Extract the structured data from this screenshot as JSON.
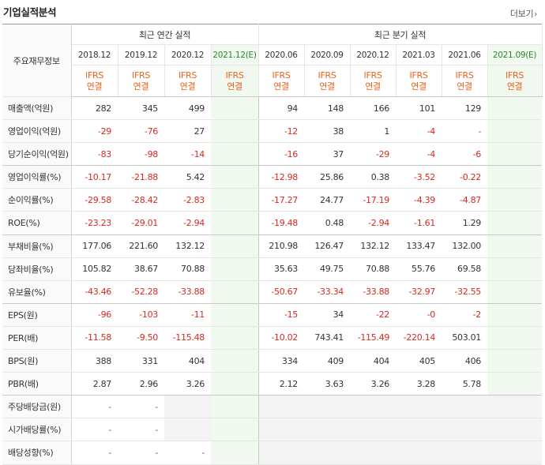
{
  "header": {
    "title": "기업실적분석",
    "more_label": "더보기",
    "more_arrow": "›"
  },
  "table": {
    "corner_label": "주요재무정보",
    "groups": {
      "annual": "최근 연간 실적",
      "quarterly": "최근 분기 실적"
    },
    "annual_periods": [
      "2018.12",
      "2019.12",
      "2020.12",
      "2021.12(E)"
    ],
    "quarter_periods": [
      "2020.06",
      "2020.09",
      "2020.12",
      "2021.03",
      "2021.06",
      "2021.09(E)"
    ],
    "ifrs_line1": "IFRS",
    "ifrs_line2": "연결",
    "rows": [
      {
        "label": "매출액(억원)",
        "annual": [
          "282",
          "345",
          "499",
          ""
        ],
        "quarter": [
          "94",
          "148",
          "166",
          "101",
          "129",
          ""
        ]
      },
      {
        "label": "영업이익(억원)",
        "annual": [
          "-29",
          "-76",
          "27",
          ""
        ],
        "quarter": [
          "-12",
          "38",
          "1",
          "-4",
          "-",
          ""
        ]
      },
      {
        "label": "당기순이익(억원)",
        "annual": [
          "-83",
          "-98",
          "-14",
          ""
        ],
        "quarter": [
          "-16",
          "37",
          "-29",
          "-4",
          "-6",
          ""
        ]
      },
      {
        "label": "영업이익률(%)",
        "annual": [
          "-10.17",
          "-21.88",
          "5.42",
          ""
        ],
        "quarter": [
          "-12.98",
          "25.86",
          "0.38",
          "-3.52",
          "-0.22",
          ""
        ]
      },
      {
        "label": "순이익률(%)",
        "annual": [
          "-29.58",
          "-28.42",
          "-2.83",
          ""
        ],
        "quarter": [
          "-17.27",
          "24.77",
          "-17.19",
          "-4.39",
          "-4.87",
          ""
        ]
      },
      {
        "label": "ROE(%)",
        "annual": [
          "-23.23",
          "-29.01",
          "-2.94",
          ""
        ],
        "quarter": [
          "-19.48",
          "0.48",
          "-2.94",
          "-1.61",
          "1.29",
          ""
        ]
      },
      {
        "label": "부채비율(%)",
        "annual": [
          "177.06",
          "221.60",
          "132.12",
          ""
        ],
        "quarter": [
          "210.98",
          "126.47",
          "132.12",
          "133.47",
          "132.00",
          ""
        ]
      },
      {
        "label": "당좌비율(%)",
        "annual": [
          "105.82",
          "38.67",
          "70.88",
          ""
        ],
        "quarter": [
          "35.63",
          "49.75",
          "70.88",
          "55.76",
          "69.58",
          ""
        ]
      },
      {
        "label": "유보율(%)",
        "annual": [
          "-43.46",
          "-52.28",
          "-33.88",
          ""
        ],
        "quarter": [
          "-50.67",
          "-33.34",
          "-33.88",
          "-32.97",
          "-32.55",
          ""
        ]
      },
      {
        "label": "EPS(원)",
        "annual": [
          "-96",
          "-103",
          "-11",
          ""
        ],
        "quarter": [
          "-15",
          "34",
          "-22",
          "-0",
          "-2",
          ""
        ]
      },
      {
        "label": "PER(배)",
        "annual": [
          "-11.58",
          "-9.50",
          "-115.48",
          ""
        ],
        "quarter": [
          "-10.02",
          "743.41",
          "-115.49",
          "-220.14",
          "503.01",
          ""
        ]
      },
      {
        "label": "BPS(원)",
        "annual": [
          "388",
          "331",
          "404",
          ""
        ],
        "quarter": [
          "334",
          "409",
          "404",
          "405",
          "406",
          ""
        ]
      },
      {
        "label": "PBR(배)",
        "annual": [
          "2.87",
          "2.96",
          "3.26",
          ""
        ],
        "quarter": [
          "2.12",
          "3.63",
          "3.26",
          "3.28",
          "5.78",
          ""
        ]
      },
      {
        "label": "주당배당금(원)",
        "annual": [
          "-",
          "-",
          "",
          ""
        ],
        "quarter": [
          "",
          "",
          "",
          "",
          "",
          ""
        ]
      },
      {
        "label": "시가배당률(%)",
        "annual": [
          "-",
          "-",
          "",
          ""
        ],
        "quarter": [
          "",
          "",
          "",
          "",
          "",
          ""
        ]
      },
      {
        "label": "배당성향(%)",
        "annual": [
          "-",
          "-",
          "-",
          ""
        ],
        "quarter": [
          "",
          "",
          "",
          "",
          "",
          ""
        ]
      }
    ]
  },
  "colors": {
    "negative": "#d8291f",
    "ifrs": "#e8631a",
    "estimate_bg": "#f1f8ef",
    "estimate_text": "#2b8a2b"
  }
}
